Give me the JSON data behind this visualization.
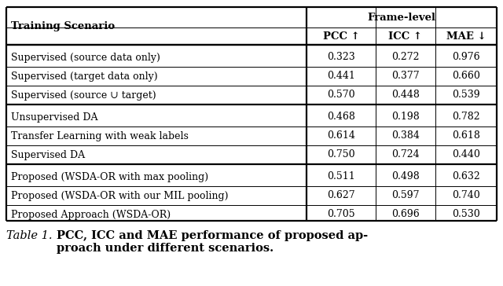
{
  "col_headers": [
    "Training Scenario",
    "PCC ↑",
    "ICC ↑",
    "MAE ↓"
  ],
  "frame_level_label": "Frame-level",
  "rows": [
    [
      "Supervised (source data only)",
      "0.323",
      "0.272",
      "0.976"
    ],
    [
      "Supervised (target data only)",
      "0.441",
      "0.377",
      "0.660"
    ],
    [
      "Supervised (source ∪ target)",
      "0.570",
      "0.448",
      "0.539"
    ],
    [
      "Unsupervised DA",
      "0.468",
      "0.198",
      "0.782"
    ],
    [
      "Transfer Learning with weak labels",
      "0.614",
      "0.384",
      "0.618"
    ],
    [
      "Supervised DA",
      "0.750",
      "0.724",
      "0.440"
    ],
    [
      "Proposed (WSDA-OR with max pooling)",
      "0.511",
      "0.498",
      "0.632"
    ],
    [
      "Proposed (WSDA-OR with our MIL pooling)",
      "0.627",
      "0.597",
      "0.740"
    ],
    [
      "Proposed Approach (WSDA-OR)",
      "0.705",
      "0.696",
      "0.530"
    ]
  ],
  "caption_italic": "Table 1.   ",
  "caption_bold": "PCC, ICC and MAE performance of proposed ap-\nproach under different scenarios.",
  "bg_color": "#ffffff",
  "text_color": "#000000",
  "header_fontsize": 9.5,
  "cell_fontsize": 9.0,
  "caption_fontsize": 10.5
}
